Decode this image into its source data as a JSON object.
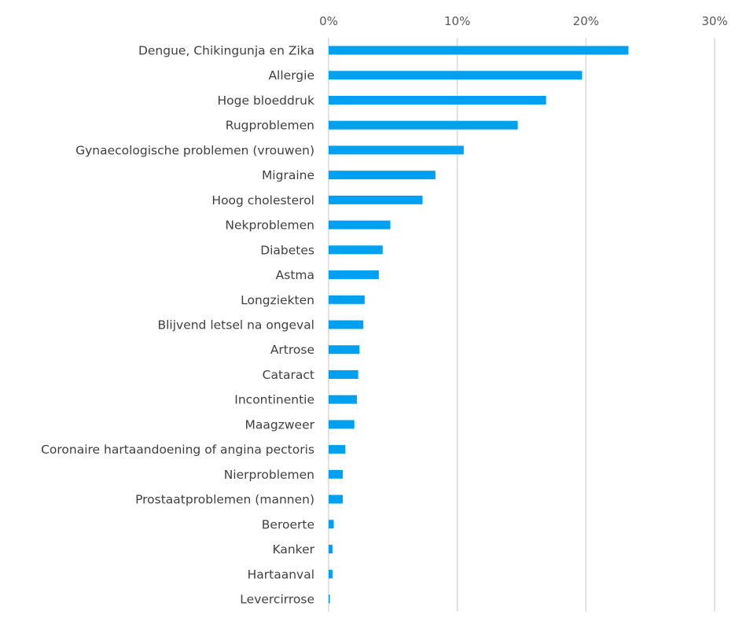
{
  "chart_data": {
    "type": "bar",
    "orientation": "horizontal",
    "title": "",
    "xlabel": "",
    "ylabel": "",
    "xlim": [
      0,
      30
    ],
    "x_ticks": [
      "0%",
      "10%",
      "20%",
      "30%"
    ],
    "x_axis_position": "top",
    "grid": true,
    "bar_color": "#00A0F0",
    "categories": [
      "Dengue, Chikingunja en Zika",
      "Allergie",
      "Hoge bloeddruk",
      "Rugproblemen",
      "Gynaecologische problemen (vrouwen)",
      "Migraine",
      "Hoog cholesterol",
      "Nekproblemen",
      "Diabetes",
      "Astma",
      "Longziekten",
      "Blijvend letsel na ongeval",
      "Artrose",
      "Cataract",
      "Incontinentie",
      "Maagzweer",
      "Coronaire hartaandoening of angina pectoris",
      "Nierproblemen",
      "Prostaatproblemen (mannen)",
      "Beroerte",
      "Kanker",
      "Hartaanval",
      "Levercirrose"
    ],
    "values": [
      23.3,
      19.7,
      16.9,
      14.7,
      10.5,
      8.3,
      7.3,
      4.8,
      4.2,
      3.9,
      2.8,
      2.7,
      2.4,
      2.3,
      2.2,
      2.0,
      1.3,
      1.1,
      1.1,
      0.4,
      0.3,
      0.3,
      0.1
    ]
  }
}
